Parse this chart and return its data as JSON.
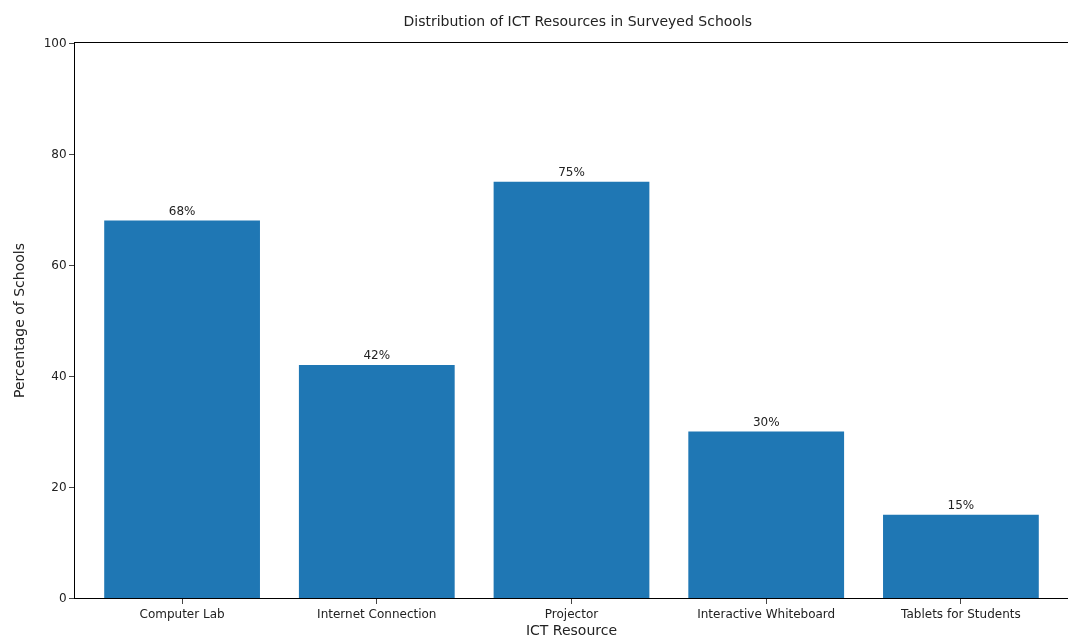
{
  "chart_data": {
    "type": "bar",
    "title": "Distribution of ICT Resources in Surveyed Schools",
    "xlabel": "ICT Resource",
    "ylabel": "Percentage of Schools",
    "categories": [
      "Computer Lab",
      "Internet Connection",
      "Projector",
      "Interactive Whiteboard",
      "Tablets for Students"
    ],
    "values": [
      68,
      42,
      75,
      30,
      15
    ],
    "value_labels": [
      "68%",
      "42%",
      "75%",
      "30%",
      "15%"
    ],
    "color": "#1f77b4",
    "ylim": [
      0,
      100
    ],
    "yticks": [
      0,
      20,
      40,
      60,
      80,
      100
    ]
  }
}
